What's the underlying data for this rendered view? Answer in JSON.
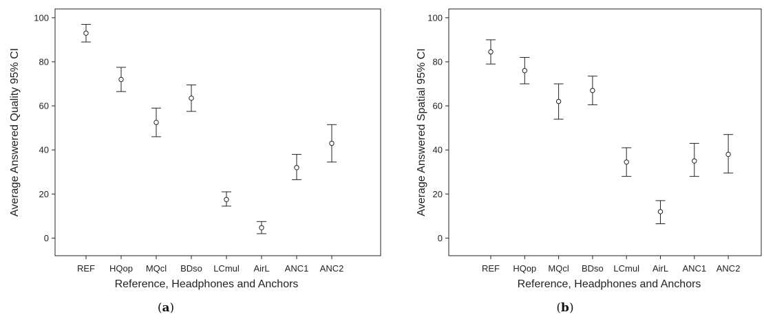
{
  "chart_data": [
    {
      "type": "errorbar",
      "panel_label": "a",
      "xlabel": "Reference, Headphones and Anchors",
      "ylabel": "Average Answered Quality 95% CI",
      "categories": [
        "REF",
        "HQop",
        "MQcl",
        "BDso",
        "LCmul",
        "AirL",
        "ANC1",
        "ANC2"
      ],
      "mean": [
        93,
        72,
        52.5,
        63.5,
        17.5,
        4.7,
        32,
        43
      ],
      "lower": [
        89,
        66.5,
        46,
        57.5,
        14.5,
        2,
        26.5,
        34.5
      ],
      "upper": [
        97,
        77.5,
        59,
        69.5,
        21,
        7.5,
        38,
        51.5
      ],
      "ylim": [
        -8,
        104
      ],
      "yticks": [
        0,
        20,
        40,
        60,
        80,
        100
      ]
    },
    {
      "type": "errorbar",
      "panel_label": "b",
      "xlabel": "Reference, Headphones and Anchors",
      "ylabel": "Average Answered Spatial 95% CI",
      "categories": [
        "REF",
        "HQop",
        "MQcl",
        "BDso",
        "LCmul",
        "AirL",
        "ANC1",
        "ANC2"
      ],
      "mean": [
        84.5,
        76,
        62,
        67,
        34.5,
        12,
        35,
        38
      ],
      "lower": [
        79,
        70,
        54,
        60.5,
        28,
        6.5,
        28,
        29.5
      ],
      "upper": [
        90,
        82,
        70,
        73.5,
        41,
        17,
        43,
        47
      ],
      "ylim": [
        -8,
        104
      ],
      "yticks": [
        0,
        20,
        40,
        60,
        80,
        100
      ]
    }
  ]
}
